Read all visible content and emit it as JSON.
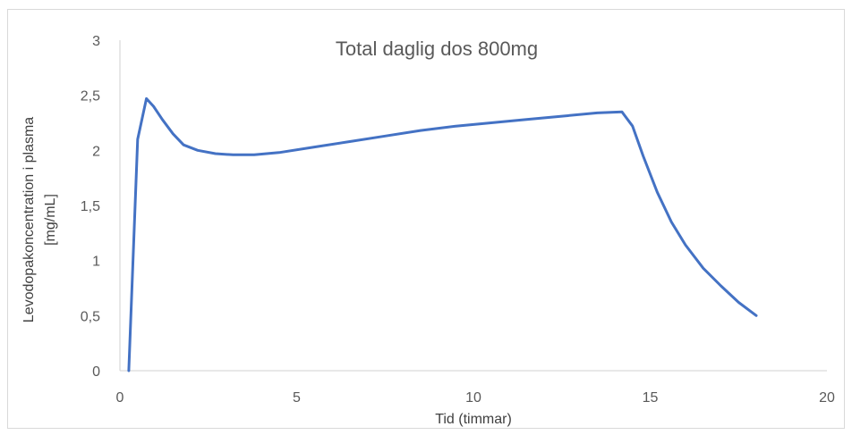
{
  "chart_data": {
    "type": "line",
    "title": "Total daglig dos 800mg",
    "xlabel": "Tid (timmar)",
    "ylabel": "Levodopakoncentration i plasma",
    "ylabel_unit": "[mg/mL]",
    "xlim": [
      0,
      20
    ],
    "ylim": [
      0,
      3
    ],
    "x_ticks": [
      0,
      5,
      10,
      15,
      20
    ],
    "x_tick_labels": [
      "0",
      "5",
      "10",
      "15",
      "20"
    ],
    "y_ticks": [
      0,
      0.5,
      1,
      1.5,
      2,
      2.5,
      3
    ],
    "y_tick_labels": [
      "0",
      "0,5",
      "1",
      "1,5",
      "2",
      "2,5",
      "3"
    ],
    "grid": false,
    "legend": "none",
    "line_color": "#4472c4",
    "series": [
      {
        "x": [
          0.25,
          0.5,
          0.75,
          0.95,
          1.2,
          1.5,
          1.8,
          2.2,
          2.7,
          3.2,
          3.8,
          4.5,
          5.5,
          6.5,
          7.5,
          8.5,
          9.5,
          10.5,
          11.5,
          12.5,
          13.5,
          14.2,
          14.5,
          14.8,
          15.2,
          15.6,
          16.0,
          16.5,
          17.0,
          17.5,
          18.0
        ],
        "y": [
          0.0,
          2.1,
          2.47,
          2.4,
          2.28,
          2.15,
          2.05,
          2.0,
          1.97,
          1.96,
          1.96,
          1.98,
          2.03,
          2.08,
          2.13,
          2.18,
          2.22,
          2.25,
          2.28,
          2.31,
          2.34,
          2.35,
          2.22,
          1.95,
          1.62,
          1.35,
          1.14,
          0.93,
          0.77,
          0.62,
          0.5
        ]
      }
    ]
  }
}
